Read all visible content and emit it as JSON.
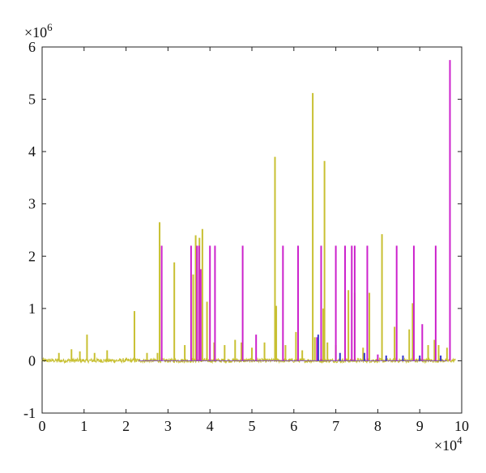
{
  "chart_data": {
    "type": "line",
    "title": "",
    "xlabel": "",
    "ylabel": "",
    "x_multiplier": "×10^4",
    "y_multiplier": "×10^6",
    "x_exponent_text": {
      "base": "×10",
      "exp": "4"
    },
    "y_exponent_text": {
      "base": "×10",
      "exp": "6"
    },
    "xlim": [
      0,
      10
    ],
    "ylim": [
      -1,
      6
    ],
    "xticks": [
      0,
      1,
      2,
      3,
      4,
      5,
      6,
      7,
      8,
      9,
      10
    ],
    "yticks": [
      -1,
      0,
      1,
      2,
      3,
      4,
      5,
      6
    ],
    "grid": false,
    "series": [
      {
        "color": "#c8c032",
        "baseline_noise": 0.05,
        "spikes": [
          [
            0.4,
            0.15
          ],
          [
            0.7,
            0.22
          ],
          [
            0.9,
            0.18
          ],
          [
            1.07,
            0.5
          ],
          [
            1.25,
            0.15
          ],
          [
            1.55,
            0.2
          ],
          [
            2.2,
            0.95
          ],
          [
            2.5,
            0.15
          ],
          [
            2.75,
            0.15
          ],
          [
            2.8,
            2.65
          ],
          [
            3.15,
            1.88
          ],
          [
            3.4,
            0.3
          ],
          [
            3.6,
            1.65
          ],
          [
            3.66,
            2.4
          ],
          [
            3.75,
            2.35
          ],
          [
            3.82,
            2.52
          ],
          [
            3.93,
            1.13
          ],
          [
            4.1,
            0.35
          ],
          [
            4.35,
            0.3
          ],
          [
            4.6,
            0.4
          ],
          [
            4.75,
            0.35
          ],
          [
            5.0,
            0.25
          ],
          [
            5.3,
            0.35
          ],
          [
            5.55,
            3.9
          ],
          [
            5.58,
            1.05
          ],
          [
            5.8,
            0.3
          ],
          [
            6.05,
            0.55
          ],
          [
            6.2,
            0.2
          ],
          [
            6.45,
            5.12
          ],
          [
            6.5,
            0.45
          ],
          [
            6.7,
            1.0
          ],
          [
            6.73,
            3.82
          ],
          [
            6.8,
            0.35
          ],
          [
            7.0,
            0.3
          ],
          [
            7.3,
            1.35
          ],
          [
            7.45,
            1.3
          ],
          [
            7.65,
            0.25
          ],
          [
            7.8,
            1.3
          ],
          [
            8.1,
            2.42
          ],
          [
            8.4,
            0.65
          ],
          [
            8.75,
            0.6
          ],
          [
            8.83,
            1.1
          ],
          [
            9.2,
            0.3
          ],
          [
            9.35,
            0.4
          ],
          [
            9.45,
            0.3
          ],
          [
            9.65,
            0.25
          ]
        ]
      },
      {
        "color": "#cc22cc",
        "baseline_noise": 0.0,
        "spikes": [
          [
            2.85,
            2.2
          ],
          [
            3.55,
            2.2
          ],
          [
            3.69,
            2.2
          ],
          [
            3.74,
            2.2
          ],
          [
            3.78,
            1.75
          ],
          [
            4.0,
            2.2
          ],
          [
            4.12,
            2.2
          ],
          [
            4.78,
            2.2
          ],
          [
            5.1,
            0.5
          ],
          [
            5.74,
            2.2
          ],
          [
            6.1,
            2.2
          ],
          [
            6.55,
            0.45
          ],
          [
            6.65,
            2.2
          ],
          [
            7.0,
            2.2
          ],
          [
            7.22,
            2.2
          ],
          [
            7.38,
            2.2
          ],
          [
            7.45,
            2.2
          ],
          [
            7.75,
            2.2
          ],
          [
            8.0,
            0.12
          ],
          [
            8.45,
            2.2
          ],
          [
            8.86,
            2.2
          ],
          [
            9.06,
            0.7
          ],
          [
            9.38,
            2.2
          ],
          [
            9.72,
            5.75
          ]
        ]
      },
      {
        "color": "#3333cc",
        "baseline_noise": 0.0,
        "spikes": [
          [
            6.58,
            0.5
          ],
          [
            7.1,
            0.15
          ],
          [
            7.68,
            0.15
          ],
          [
            8.2,
            0.1
          ],
          [
            8.6,
            0.1
          ],
          [
            9.0,
            0.1
          ],
          [
            9.5,
            0.1
          ]
        ]
      }
    ]
  }
}
